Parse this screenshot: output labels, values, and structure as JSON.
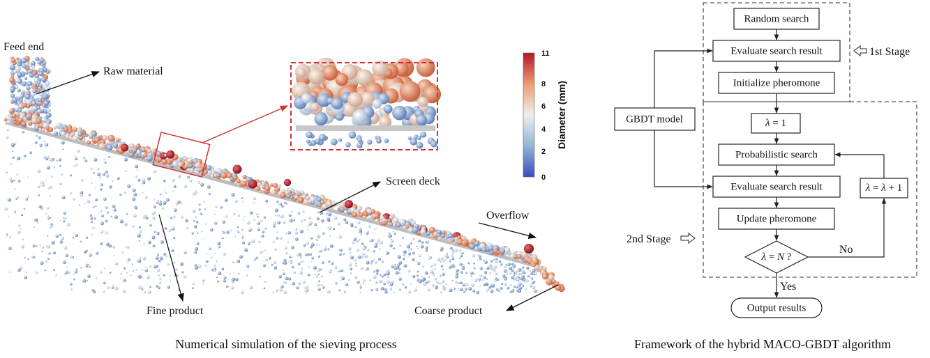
{
  "left": {
    "labels": {
      "feed_end": "Feed end",
      "raw_material": "Raw material",
      "screen_deck": "Screen deck",
      "overflow": "Overflow",
      "fine_product": "Fine product",
      "coarse_product": "Coarse product"
    },
    "colorbar": {
      "title": "Diameter (mm)",
      "ticks": [
        "11",
        "8",
        "6",
        "4",
        "2",
        "0"
      ],
      "colors": {
        "high": "#b2182b",
        "mid_high": "#ef8a62",
        "mid": "#f7f7f7",
        "mid_low": "#92b4d6",
        "low": "#3b4cc0"
      }
    },
    "caption": "Numerical simulation of the sieving process"
  },
  "right": {
    "boxes": {
      "random_search": "Random search",
      "evaluate_1": "Evaluate search result",
      "initialize": "Initialize pheromone",
      "gbdt": "GBDT model",
      "lambda_init_a": "λ",
      "lambda_init_b": " = 1",
      "prob_search": "Probabilistic search",
      "evaluate_2": "Evaluate search result",
      "update": "Update pheromone",
      "cond_a": "λ",
      "cond_b": " = ",
      "cond_c": "N",
      "cond_d": " ?",
      "increment_a": "λ",
      "increment_b": " = ",
      "increment_c": "λ",
      "increment_d": " + 1",
      "output": "Output results"
    },
    "labels": {
      "stage1": "1st Stage",
      "stage2": "2nd Stage",
      "no": "No",
      "yes": "Yes"
    },
    "caption": "Framework of the hybrid MACO-GBDT algorithm"
  }
}
